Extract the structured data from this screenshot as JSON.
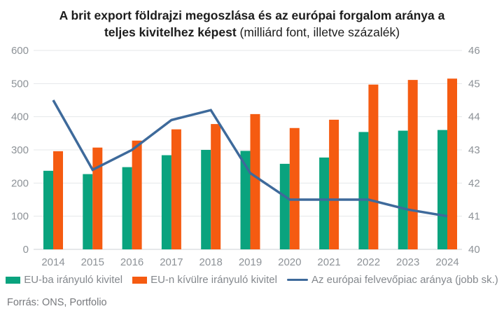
{
  "title": {
    "line1_bold": "A brit export földrajzi megoszlása és az európai forgalom aránya a",
    "line2_bold": "teljes kivitelhez képest",
    "line2_normal": " (milliárd font, illetve százalék)"
  },
  "chart_data": {
    "type": "bar",
    "title": "A brit export földrajzi megoszlása és az európai forgalom aránya a teljes kivitelhez képest",
    "subtitle": "(milliárd font, illetve százalék)",
    "categories": [
      "2014",
      "2015",
      "2016",
      "2017",
      "2018",
      "2019",
      "2020",
      "2021",
      "2022",
      "2023",
      "2024"
    ],
    "series": [
      {
        "name": "EU-ba irányuló kivitel",
        "type": "bar",
        "axis": "left",
        "color": "#0AA37E",
        "values": [
          237,
          227,
          248,
          284,
          300,
          297,
          258,
          277,
          354,
          358,
          360
        ]
      },
      {
        "name": "EU-n kívülre irányuló kivitel",
        "type": "bar",
        "axis": "left",
        "color": "#F55B11",
        "values": [
          296,
          307,
          328,
          362,
          378,
          408,
          366,
          391,
          497,
          511,
          515
        ]
      },
      {
        "name": "Az európai felvevőpiac aránya (jobb sk.)",
        "type": "line",
        "axis": "right",
        "color": "#3E6A9B",
        "values": [
          44.5,
          42.4,
          43.0,
          43.9,
          44.2,
          42.3,
          41.5,
          41.5,
          41.5,
          41.2,
          41.0
        ]
      }
    ],
    "left_axis": {
      "min": 0,
      "max": 600,
      "step": 100
    },
    "right_axis": {
      "min": 40,
      "max": 46,
      "step": 1
    },
    "grid": true,
    "legend_position": "bottom"
  },
  "footer": {
    "source": "Forrás: ONS, Portfolio"
  },
  "colors": {
    "bar_eu": "#0AA37E",
    "bar_non_eu": "#F55B11",
    "line_share": "#3E6A9B",
    "axis_text": "#8D9297",
    "gridline": "#E5E7E9",
    "baseline": "#CDD2D6",
    "title_text": "#1C1C1C",
    "legend_text": "#84888D",
    "source_text": "#77797D"
  }
}
